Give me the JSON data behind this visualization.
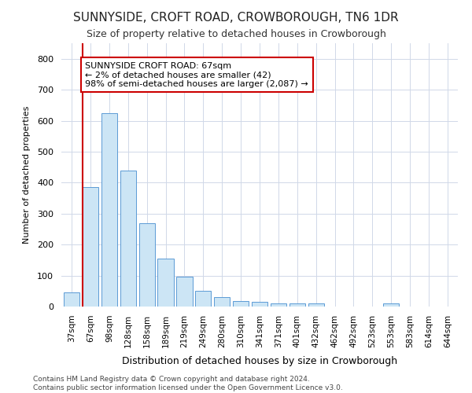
{
  "title": "SUNNYSIDE, CROFT ROAD, CROWBOROUGH, TN6 1DR",
  "subtitle": "Size of property relative to detached houses in Crowborough",
  "xlabel": "Distribution of detached houses by size in Crowborough",
  "ylabel": "Number of detached properties",
  "categories": [
    "37sqm",
    "67sqm",
    "98sqm",
    "128sqm",
    "158sqm",
    "189sqm",
    "219sqm",
    "249sqm",
    "280sqm",
    "310sqm",
    "341sqm",
    "371sqm",
    "401sqm",
    "432sqm",
    "462sqm",
    "492sqm",
    "523sqm",
    "553sqm",
    "583sqm",
    "614sqm",
    "644sqm"
  ],
  "values": [
    45,
    385,
    625,
    440,
    268,
    155,
    97,
    52,
    30,
    17,
    15,
    10,
    10,
    10,
    0,
    0,
    0,
    10,
    0,
    0,
    0
  ],
  "bar_color": "#cce5f5",
  "bar_edge_color": "#5b9bd5",
  "highlight_bar_index": 1,
  "highlight_color": "#cc0000",
  "annotation_text": "SUNNYSIDE CROFT ROAD: 67sqm\n← 2% of detached houses are smaller (42)\n98% of semi-detached houses are larger (2,087) →",
  "annotation_box_color": "#ffffff",
  "annotation_box_edge": "#cc0000",
  "ylim": [
    0,
    850
  ],
  "yticks": [
    0,
    100,
    200,
    300,
    400,
    500,
    600,
    700,
    800
  ],
  "footer": "Contains HM Land Registry data © Crown copyright and database right 2024.\nContains public sector information licensed under the Open Government Licence v3.0.",
  "background_color": "#ffffff",
  "grid_color": "#d0d8e8"
}
